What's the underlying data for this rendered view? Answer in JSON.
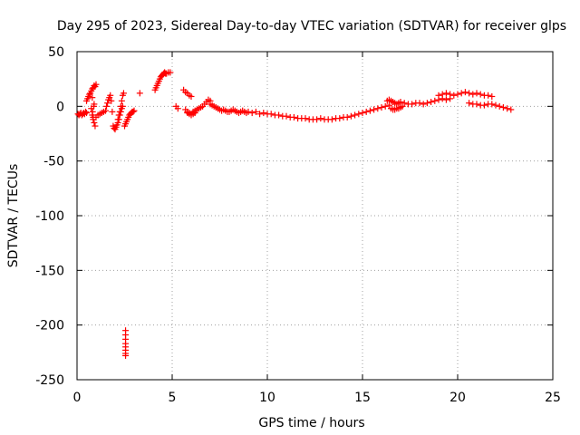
{
  "chart_data": {
    "type": "scatter",
    "title": "Day 295 of 2023, Sidereal Day-to-day VTEC variation (SDTVAR) for receiver glps",
    "xlabel": "GPS time / hours",
    "ylabel": "SDTVAR / TECUs",
    "xlim": [
      0,
      25
    ],
    "ylim": [
      -250,
      50
    ],
    "xticks": [
      0,
      5,
      10,
      15,
      20,
      25
    ],
    "yticks": [
      50,
      0,
      -50,
      -100,
      -150,
      -200,
      -250
    ],
    "grid": true,
    "marker": "plus",
    "color": "#ff0000",
    "series": [
      {
        "name": "SDTVAR",
        "x": [
          0.05,
          0.1,
          0.15,
          0.2,
          0.25,
          0.3,
          0.35,
          0.4,
          0.45,
          0.5,
          0.5,
          0.55,
          0.6,
          0.65,
          0.7,
          0.75,
          0.8,
          0.85,
          0.9,
          0.95,
          1.0,
          0.75,
          0.8,
          0.85,
          0.9,
          0.95,
          0.8,
          0.82,
          0.85,
          0.88,
          0.9,
          1.0,
          1.1,
          1.2,
          1.3,
          1.4,
          1.5,
          1.55,
          1.6,
          1.65,
          1.7,
          1.75,
          1.8,
          1.85,
          1.9,
          1.95,
          2.0,
          2.05,
          2.1,
          2.15,
          2.2,
          2.25,
          2.3,
          2.35,
          2.4,
          2.15,
          2.2,
          2.25,
          2.3,
          2.35,
          2.4,
          2.45,
          2.5,
          2.55,
          2.6,
          2.65,
          2.7,
          2.75,
          2.8,
          2.85,
          2.9,
          2.95,
          3.0,
          3.3,
          4.1,
          4.15,
          4.2,
          4.25,
          4.3,
          4.35,
          4.4,
          4.45,
          4.5,
          4.55,
          4.6,
          4.65,
          4.7,
          4.8,
          4.9,
          2.55,
          2.55,
          2.55,
          2.55,
          2.55,
          2.55,
          2.55,
          2.55,
          5.2,
          5.3,
          5.6,
          5.7,
          5.8,
          5.9,
          6.0,
          5.7,
          5.8,
          5.9,
          6.0,
          6.1,
          6.2,
          6.3,
          6.4,
          6.5,
          6.6,
          6.7,
          6.8,
          6.9,
          7.0,
          5.8,
          5.9,
          6.0,
          6.1,
          6.2,
          7.0,
          7.1,
          7.2,
          7.3,
          7.4,
          7.5,
          7.6,
          7.7,
          7.8,
          7.9,
          8.0,
          8.1,
          8.2,
          8.3,
          8.4,
          8.5,
          8.6,
          8.7,
          8.8,
          8.9,
          9.0,
          9.2,
          9.4,
          9.6,
          9.8,
          10.0,
          10.2,
          10.4,
          10.6,
          10.8,
          11.0,
          11.2,
          11.4,
          11.6,
          11.8,
          12.0,
          12.2,
          12.4,
          12.6,
          12.8,
          13.0,
          13.2,
          13.4,
          13.6,
          13.8,
          14.0,
          14.2,
          14.4,
          14.6,
          14.8,
          15.0,
          15.2,
          15.4,
          15.6,
          15.8,
          16.0,
          16.2,
          16.4,
          16.3,
          16.4,
          16.5,
          16.6,
          16.7,
          16.8,
          16.9,
          17.0,
          17.2,
          17.4,
          16.5,
          16.6,
          16.7,
          16.8,
          16.9,
          17.0,
          17.1,
          17.6,
          17.8,
          18.0,
          18.2,
          18.4,
          18.6,
          18.8,
          19.0,
          19.2,
          19.4,
          19.6,
          19.0,
          19.2,
          19.4,
          19.6,
          19.8,
          20.0,
          20.2,
          20.4,
          20.6,
          20.8,
          21.0,
          21.2,
          21.4,
          21.6,
          21.8,
          20.6,
          20.8,
          21.0,
          21.2,
          21.4,
          21.6,
          21.8,
          22.0,
          22.2,
          22.4,
          22.6,
          22.8
        ],
        "y": [
          -7,
          -8,
          -7,
          -6,
          -8,
          -7,
          -6,
          -7,
          -5,
          -6,
          5,
          7,
          9,
          11,
          12,
          14,
          16,
          17,
          19,
          18,
          20,
          -2,
          -8,
          -12,
          -15,
          -18,
          8,
          -5,
          -10,
          0,
          2,
          -10,
          -8,
          -7,
          -6,
          -5,
          -4,
          0,
          3,
          6,
          8,
          10,
          5,
          -5,
          -18,
          -20,
          -21,
          -19,
          -17,
          -15,
          -12,
          -8,
          -5,
          -2,
          0,
          -12,
          -8,
          -5,
          0,
          5,
          10,
          12,
          -18,
          -16,
          -14,
          -12,
          -10,
          -8,
          -7,
          -6,
          -5,
          -5,
          -4,
          12,
          15,
          17,
          19,
          21,
          23,
          25,
          27,
          28,
          29,
          30,
          31,
          30,
          30,
          31,
          31,
          -205,
          -209,
          -213,
          -217,
          -220,
          -223,
          -226,
          -228,
          0,
          -2,
          15,
          13,
          12,
          10,
          9,
          -3,
          -5,
          -6,
          -7,
          -5,
          -4,
          -3,
          -2,
          -1,
          0,
          2,
          4,
          6,
          5,
          -6,
          -7,
          -8,
          -7,
          -6,
          2,
          1,
          0,
          -1,
          -2,
          -3,
          -4,
          -3,
          -4,
          -5,
          -5,
          -4,
          -3,
          -4,
          -5,
          -6,
          -5,
          -4,
          -5,
          -6,
          -5,
          -6,
          -5,
          -7,
          -6,
          -7,
          -7,
          -8,
          -8,
          -9,
          -9,
          -10,
          -10,
          -11,
          -11,
          -11,
          -12,
          -12,
          -12,
          -11,
          -12,
          -12,
          -12,
          -11,
          -11,
          -10,
          -10,
          -9,
          -8,
          -7,
          -6,
          -5,
          -4,
          -3,
          -2,
          -1,
          0,
          1,
          5,
          6,
          5,
          4,
          3,
          2,
          3,
          4,
          3,
          2,
          -2,
          -3,
          -3,
          -2,
          -2,
          -1,
          0,
          2,
          3,
          3,
          2,
          3,
          4,
          5,
          6,
          7,
          6,
          7,
          10,
          11,
          12,
          11,
          10,
          11,
          12,
          13,
          12,
          11,
          12,
          11,
          10,
          10,
          9,
          3,
          2,
          2,
          1,
          1,
          2,
          2,
          1,
          0,
          -1,
          -2,
          -3
        ]
      }
    ]
  }
}
